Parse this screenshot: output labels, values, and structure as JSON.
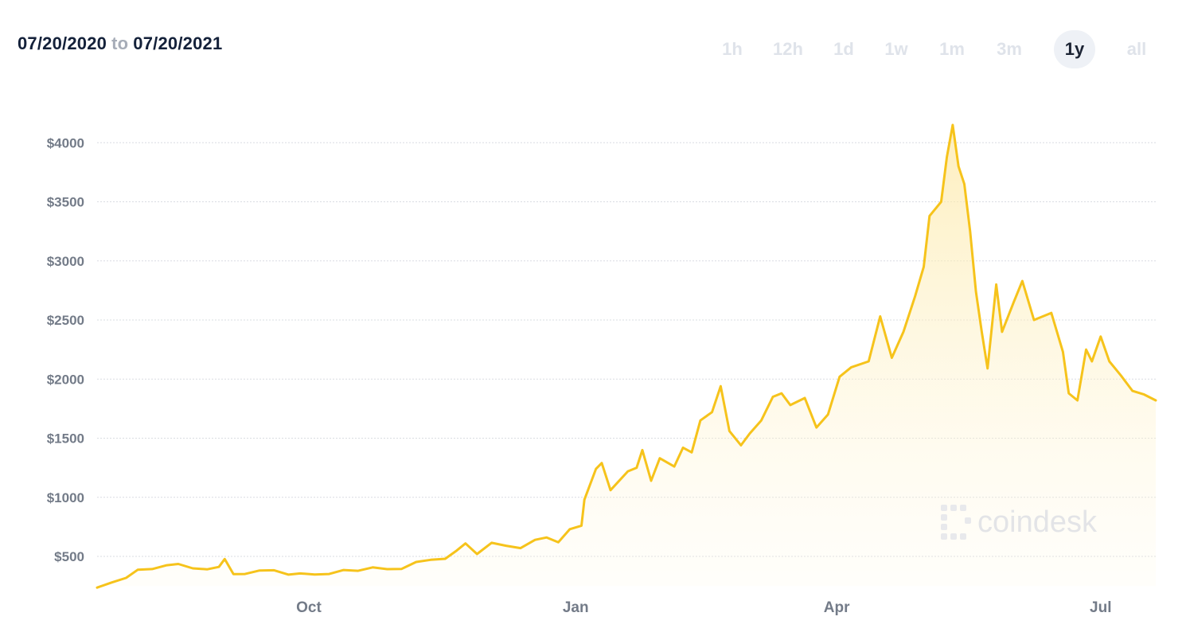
{
  "date_range": {
    "from": "07/20/2020",
    "separator": "to",
    "to": "07/20/2021"
  },
  "tabs": [
    {
      "label": "1h",
      "active": false
    },
    {
      "label": "12h",
      "active": false
    },
    {
      "label": "1d",
      "active": false
    },
    {
      "label": "1w",
      "active": false
    },
    {
      "label": "1m",
      "active": false
    },
    {
      "label": "3m",
      "active": false
    },
    {
      "label": "1y",
      "active": true
    },
    {
      "label": "all",
      "active": false
    }
  ],
  "watermark": {
    "text": "coindesk"
  },
  "colors": {
    "line": "#f6c31b",
    "fill": "#fdf0c4",
    "grid": "#d9dce2",
    "label": "#737b88"
  },
  "chart_data": {
    "type": "area",
    "title": "",
    "xlabel": "",
    "ylabel": "",
    "ylim": [
      250,
      4250
    ],
    "yticks": [
      500,
      1000,
      1500,
      2000,
      2500,
      3000,
      3500,
      4000
    ],
    "ytick_labels": [
      "$500",
      "$1000",
      "$1500",
      "$2000",
      "$2500",
      "$3000",
      "$3500",
      "$4000"
    ],
    "xticks": [
      {
        "label": "Oct",
        "date": "2020-10-01"
      },
      {
        "label": "Jan",
        "date": "2021-01-01"
      },
      {
        "label": "Apr",
        "date": "2021-04-01"
      },
      {
        "label": "Jul",
        "date": "2021-07-01"
      }
    ],
    "grid": true,
    "series": [
      {
        "points": [
          [
            "2020-07-20",
            236
          ],
          [
            "2020-07-25",
            279
          ],
          [
            "2020-07-30",
            318
          ],
          [
            "2020-08-03",
            387
          ],
          [
            "2020-08-08",
            393
          ],
          [
            "2020-08-13",
            425
          ],
          [
            "2020-08-17",
            436
          ],
          [
            "2020-08-22",
            399
          ],
          [
            "2020-08-27",
            391
          ],
          [
            "2020-08-31",
            411
          ],
          [
            "2020-09-02",
            478
          ],
          [
            "2020-09-05",
            350
          ],
          [
            "2020-09-09",
            351
          ],
          [
            "2020-09-14",
            381
          ],
          [
            "2020-09-19",
            383
          ],
          [
            "2020-09-24",
            346
          ],
          [
            "2020-09-28",
            356
          ],
          [
            "2020-10-03",
            347
          ],
          [
            "2020-10-08",
            351
          ],
          [
            "2020-10-13",
            385
          ],
          [
            "2020-10-18",
            378
          ],
          [
            "2020-10-23",
            407
          ],
          [
            "2020-10-28",
            392
          ],
          [
            "2020-11-02",
            394
          ],
          [
            "2020-11-07",
            453
          ],
          [
            "2020-11-12",
            471
          ],
          [
            "2020-11-17",
            480
          ],
          [
            "2020-11-21",
            550
          ],
          [
            "2020-11-24",
            610
          ],
          [
            "2020-11-28",
            520
          ],
          [
            "2020-12-03",
            615
          ],
          [
            "2020-12-08",
            590
          ],
          [
            "2020-12-13",
            570
          ],
          [
            "2020-12-18",
            640
          ],
          [
            "2020-12-22",
            660
          ],
          [
            "2020-12-26",
            620
          ],
          [
            "2020-12-30",
            730
          ],
          [
            "2021-01-03",
            760
          ],
          [
            "2021-01-04",
            980
          ],
          [
            "2021-01-08",
            1240
          ],
          [
            "2021-01-10",
            1290
          ],
          [
            "2021-01-13",
            1060
          ],
          [
            "2021-01-19",
            1220
          ],
          [
            "2021-01-22",
            1250
          ],
          [
            "2021-01-24",
            1400
          ],
          [
            "2021-01-27",
            1140
          ],
          [
            "2021-01-30",
            1330
          ],
          [
            "2021-02-04",
            1260
          ],
          [
            "2021-02-07",
            1420
          ],
          [
            "2021-02-10",
            1380
          ],
          [
            "2021-02-13",
            1650
          ],
          [
            "2021-02-17",
            1720
          ],
          [
            "2021-02-20",
            1940
          ],
          [
            "2021-02-23",
            1560
          ],
          [
            "2021-02-27",
            1440
          ],
          [
            "2021-03-02",
            1540
          ],
          [
            "2021-03-06",
            1650
          ],
          [
            "2021-03-10",
            1850
          ],
          [
            "2021-03-13",
            1880
          ],
          [
            "2021-03-16",
            1780
          ],
          [
            "2021-03-21",
            1840
          ],
          [
            "2021-03-25",
            1590
          ],
          [
            "2021-03-29",
            1700
          ],
          [
            "2021-04-02",
            2020
          ],
          [
            "2021-04-06",
            2100
          ],
          [
            "2021-04-12",
            2150
          ],
          [
            "2021-04-16",
            2530
          ],
          [
            "2021-04-20",
            2180
          ],
          [
            "2021-04-24",
            2400
          ],
          [
            "2021-04-28",
            2700
          ],
          [
            "2021-05-01",
            2950
          ],
          [
            "2021-05-03",
            3380
          ],
          [
            "2021-05-07",
            3500
          ],
          [
            "2021-05-09",
            3880
          ],
          [
            "2021-05-11",
            4150
          ],
          [
            "2021-05-13",
            3800
          ],
          [
            "2021-05-15",
            3650
          ],
          [
            "2021-05-17",
            3250
          ],
          [
            "2021-05-19",
            2740
          ],
          [
            "2021-05-21",
            2400
          ],
          [
            "2021-05-23",
            2090
          ],
          [
            "2021-05-26",
            2800
          ],
          [
            "2021-05-28",
            2400
          ],
          [
            "2021-06-01",
            2650
          ],
          [
            "2021-06-04",
            2830
          ],
          [
            "2021-06-08",
            2500
          ],
          [
            "2021-06-14",
            2560
          ],
          [
            "2021-06-18",
            2230
          ],
          [
            "2021-06-20",
            1880
          ],
          [
            "2021-06-23",
            1820
          ],
          [
            "2021-06-26",
            2250
          ],
          [
            "2021-06-28",
            2150
          ],
          [
            "2021-07-01",
            2360
          ],
          [
            "2021-07-04",
            2150
          ],
          [
            "2021-07-08",
            2030
          ],
          [
            "2021-07-12",
            1900
          ],
          [
            "2021-07-16",
            1870
          ],
          [
            "2021-07-20",
            1820
          ]
        ]
      }
    ]
  }
}
